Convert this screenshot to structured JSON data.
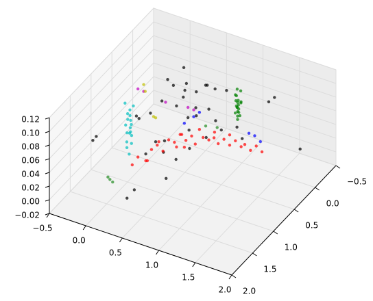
{
  "chart_data": {
    "type": "scatter3d",
    "grid": true,
    "xlim": [
      -0.5,
      2.0
    ],
    "ylim": [
      -0.5,
      2.0
    ],
    "zlim": [
      -0.02,
      0.12
    ],
    "xticks": [
      {
        "value": -0.5,
        "label": "−0.5"
      },
      {
        "value": 0,
        "label": "0.0"
      },
      0.5,
      {
        "value": 1,
        "label": "1.0"
      },
      1.5,
      {
        "value": 2,
        "label": "2.0"
      }
    ],
    "yticks": [
      {
        "value": -0.5,
        "label": "−0.5"
      },
      {
        "value": 0,
        "label": "0.0"
      },
      0.5,
      {
        "value": 1,
        "label": "1.0"
      },
      1.5,
      {
        "value": 2,
        "label": "2.0"
      }
    ],
    "zticks": [
      {
        "value": -0.02,
        "label": "−0.02"
      },
      {
        "value": 0,
        "label": "0.00"
      },
      0.02,
      0.04,
      0.06,
      0.08,
      {
        "value": 0.1,
        "label": "0.10"
      },
      0.12
    ],
    "series": [
      {
        "color": "#000000",
        "x": [
          0.5,
          0.4,
          0.6,
          0.3,
          0.7,
          0.55,
          0.45,
          0.8,
          0.35,
          0.65,
          0.5,
          0.9,
          0.2,
          0.75,
          0.6,
          0.4,
          1.5,
          1.45,
          -0.23,
          -0.2,
          0.29,
          0.35,
          1.6,
          1.0,
          0.85,
          0.1,
          0.3,
          0.55,
          0.7,
          1.1,
          0.95,
          0.25,
          0.45,
          0.6,
          0.8,
          0.15,
          1.2,
          0.5,
          0.35,
          0.65
        ],
        "y": [
          0.5,
          0.6,
          0.4,
          0.7,
          0.35,
          0.55,
          0.45,
          0.3,
          0.65,
          0.5,
          0.7,
          0.2,
          0.8,
          0.4,
          0.6,
          0.35,
          0.1,
          0.15,
          1.43,
          1.4,
          1.52,
          1.45,
          -0.34,
          0.5,
          0.6,
          0.9,
          0.85,
          0.8,
          0.75,
          0.3,
          0.55,
          1.0,
          0.9,
          0.4,
          0.45,
          1.05,
          0.35,
          0.95,
          0.75,
          0.65
        ],
        "z": [
          0.1,
          0.11,
          0.095,
          0.09,
          0.105,
          0.115,
          0.085,
          0.1,
          0.12,
          0.08,
          0.09,
          0.095,
          0.075,
          0.11,
          0.07,
          0.12,
          0.1,
          0.095,
          0.06,
          0.065,
          0.0,
          0.01,
          0.0,
          0.06,
          0.05,
          0.07,
          0.04,
          0.02,
          0.065,
          0.055,
          0.075,
          0.03,
          0.05,
          0.06,
          0.08,
          0.085,
          0.045,
          0.0,
          0.02,
          0.03
        ]
      },
      {
        "color": "#ff0000",
        "x": [
          0.15,
          0.2,
          0.25,
          0.3,
          0.3,
          0.35,
          0.4,
          0.45,
          0.5,
          0.5,
          0.55,
          0.6,
          0.65,
          0.7,
          0.7,
          0.75,
          0.8,
          0.85,
          0.9,
          0.95,
          1.0,
          1.05,
          1.1,
          1.15,
          1.2,
          1.25,
          1.3,
          0.4,
          0.6,
          0.9,
          1.0,
          0.55
        ],
        "y": [
          1.15,
          1.1,
          1.0,
          0.95,
          1.05,
          0.9,
          0.85,
          0.8,
          0.75,
          0.7,
          0.7,
          0.65,
          0.6,
          0.6,
          0.5,
          0.5,
          0.45,
          0.4,
          0.4,
          0.35,
          0.3,
          0.25,
          0.2,
          0.2,
          0.15,
          0.1,
          0.05,
          0.95,
          0.75,
          0.5,
          0.3,
          0.6
        ],
        "z": [
          0.02,
          0.03,
          0.02,
          0.035,
          0.025,
          0.04,
          0.03,
          0.045,
          0.04,
          0.03,
          0.05,
          0.04,
          0.045,
          0.035,
          0.05,
          0.04,
          0.035,
          0.045,
          0.03,
          0.035,
          0.025,
          0.03,
          0.02,
          0.025,
          0.015,
          0.02,
          0.01,
          0.05,
          0.055,
          0.045,
          0.04,
          0.025
        ]
      },
      {
        "color": "#008000",
        "x": [
          1.2,
          1.22,
          1.18,
          1.21,
          1.19,
          1.23,
          1.2,
          1.17,
          1.22,
          1.2,
          1.19,
          1.21,
          1.24,
          1.18,
          1.2,
          1.22,
          1.2,
          1.19,
          1.21,
          1.2
        ],
        "y": [
          0.46,
          0.44,
          0.48,
          0.45,
          0.47,
          0.43,
          0.5,
          0.46,
          0.42,
          0.47,
          0.44,
          0.49,
          0.45,
          0.43,
          0.46,
          0.48,
          0.44,
          0.47,
          0.45,
          0.46
        ],
        "z": [
          0.08,
          0.085,
          0.09,
          0.095,
          0.1,
          0.105,
          0.11,
          0.115,
          0.12,
          0.125,
          0.09,
          0.1,
          0.105,
          0.095,
          0.085,
          0.11,
          0.1,
          0.115,
          0.09,
          0.105
        ]
      },
      {
        "color": "#00bfbf",
        "x": [
          0.08,
          0.06,
          0.1,
          0.07,
          0.09,
          0.05,
          0.11,
          0.08,
          0.06,
          0.1,
          0.08,
          0.07,
          0.09,
          0.12,
          0.04,
          0.08,
          0.1,
          0.06
        ],
        "y": [
          1.1,
          1.12,
          1.08,
          1.14,
          1.06,
          1.1,
          1.12,
          1.05,
          1.15,
          1.1,
          1.08,
          1.12,
          1.1,
          1.07,
          1.13,
          1.09,
          1.11,
          1.1
        ],
        "z": [
          0.03,
          0.04,
          0.045,
          0.05,
          0.055,
          0.06,
          0.065,
          0.07,
          0.075,
          0.08,
          0.085,
          0.09,
          0.095,
          0.1,
          0.105,
          0.06,
          0.07,
          0.08
        ]
      },
      {
        "color": "#0000ff",
        "x": [
          1.2,
          1.25,
          0.65,
          0.7,
          1.15,
          0.55
        ],
        "y": [
          0.05,
          0.0,
          0.55,
          0.5,
          0.1,
          0.6
        ],
        "z": [
          0.03,
          0.02,
          0.07,
          0.075,
          0.035,
          0.06
        ]
      },
      {
        "color": "#bf00bf",
        "x": [
          0.0,
          0.05,
          0.6,
          0.65,
          0.35
        ],
        "y": [
          0.75,
          0.7,
          0.6,
          0.55,
          0.7
        ],
        "z": [
          0.1,
          0.095,
          0.085,
          0.08,
          0.09
        ]
      },
      {
        "color": "#bfbf00",
        "x": [
          0.05,
          0.1,
          0.3,
          0.3
        ],
        "y": [
          0.7,
          0.75,
          0.9,
          0.85
        ],
        "z": [
          0.105,
          0.1,
          0.08,
          0.075
        ]
      },
      {
        "color": "#228b22",
        "x": [
          0.13,
          0.15,
          0.12,
          1.0,
          0.9
        ],
        "y": [
          1.65,
          1.62,
          1.68,
          0.6,
          0.7
        ],
        "z": [
          0.03,
          0.025,
          0.035,
          0.07,
          0.075
        ]
      }
    ]
  }
}
